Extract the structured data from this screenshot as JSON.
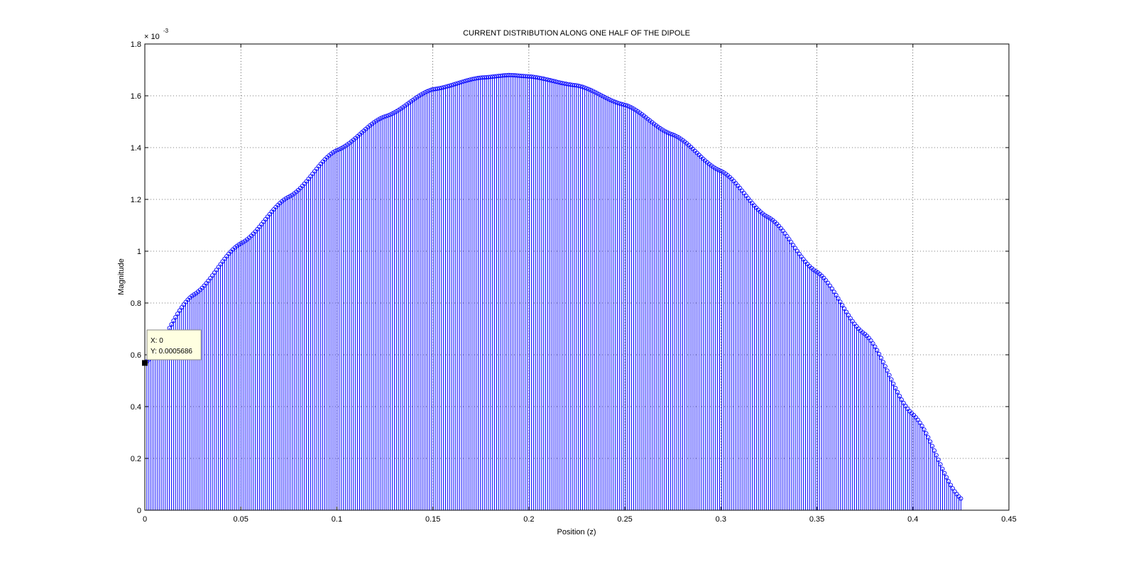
{
  "chart_data": {
    "type": "stem",
    "title": "CURRENT DISTRIBUTION ALONG ONE HALF OF THE DIPOLE",
    "xlabel": "Position (z)",
    "ylabel": "Magnitude",
    "y_exponent_label": "× 10",
    "y_exponent_power": "-3",
    "xlim": [
      0,
      0.45
    ],
    "ylim": [
      0,
      1.8
    ],
    "y_scale": 0.001,
    "xticks": [
      "0",
      "0.05",
      "0.1",
      "0.15",
      "0.2",
      "0.25",
      "0.3",
      "0.35",
      "0.4",
      "0.45"
    ],
    "yticks": [
      "0",
      "0.2",
      "0.4",
      "0.6",
      "0.8",
      "1",
      "1.2",
      "1.4",
      "1.6",
      "1.8"
    ],
    "grid": true,
    "series": [
      {
        "color": "#0000ff",
        "marker": "circle",
        "x_start": 0,
        "x_end": 0.425,
        "n_points": 400,
        "profile": [
          [
            0.0,
            0.5686
          ],
          [
            0.025,
            0.83
          ],
          [
            0.05,
            1.03
          ],
          [
            0.075,
            1.21
          ],
          [
            0.1,
            1.39
          ],
          [
            0.125,
            1.52
          ],
          [
            0.15,
            1.625
          ],
          [
            0.175,
            1.67
          ],
          [
            0.19,
            1.68
          ],
          [
            0.2,
            1.675
          ],
          [
            0.225,
            1.64
          ],
          [
            0.25,
            1.565
          ],
          [
            0.275,
            1.45
          ],
          [
            0.3,
            1.31
          ],
          [
            0.325,
            1.13
          ],
          [
            0.35,
            0.92
          ],
          [
            0.375,
            0.68
          ],
          [
            0.4,
            0.37
          ],
          [
            0.425,
            0.045
          ]
        ]
      }
    ],
    "datatip": {
      "x_text": "X: 0",
      "y_text": "Y: 0.0005686",
      "x": 0,
      "y": 0.5686
    }
  }
}
